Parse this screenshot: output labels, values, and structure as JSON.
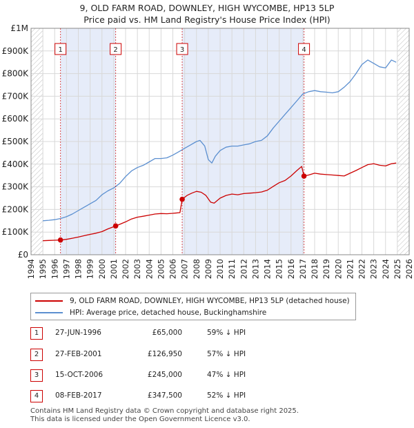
{
  "header": {
    "title_line1": "9, OLD FARM ROAD, DOWNLEY, HIGH WYCOMBE, HP13 5LP",
    "title_line2": "Price paid vs. HM Land Registry's House Price Index (HPI)"
  },
  "colors": {
    "property_line": "#cc0000",
    "hpi_line": "#5b8fd0",
    "span_fill": "#e6ecf9",
    "hatch": "#bbbbbb",
    "grid": "#d8d8d8"
  },
  "chart_data": {
    "type": "line",
    "x_range": [
      1994,
      2026
    ],
    "y_range": [
      0,
      1000000
    ],
    "xlabel": "",
    "ylabel": "",
    "x_ticks": [
      "1994",
      "1995",
      "1996",
      "1997",
      "1998",
      "1999",
      "2000",
      "2001",
      "2002",
      "2003",
      "2004",
      "2005",
      "2006",
      "2007",
      "2008",
      "2009",
      "2010",
      "2011",
      "2012",
      "2013",
      "2014",
      "2015",
      "2016",
      "2017",
      "2018",
      "2019",
      "2020",
      "2021",
      "2022",
      "2023",
      "2024",
      "2025",
      "2026"
    ],
    "y_ticks": [
      {
        "value": 0,
        "label": "£0"
      },
      {
        "value": 100000,
        "label": "£100K"
      },
      {
        "value": 200000,
        "label": "£200K"
      },
      {
        "value": 300000,
        "label": "£300K"
      },
      {
        "value": 400000,
        "label": "£400K"
      },
      {
        "value": 500000,
        "label": "£500K"
      },
      {
        "value": 600000,
        "label": "£600K"
      },
      {
        "value": 700000,
        "label": "£700K"
      },
      {
        "value": 800000,
        "label": "£800K"
      },
      {
        "value": 900000,
        "label": "£900K"
      },
      {
        "value": 1000000,
        "label": "£1M"
      }
    ],
    "shaded_spans": [
      [
        1996.49,
        2001.16
      ],
      [
        2006.79,
        2017.1
      ]
    ],
    "hatch_before": 1995.0,
    "hatch_after": 2025.0,
    "series": [
      {
        "name": "9, OLD FARM ROAD, DOWNLEY, HIGH WYCOMBE, HP13 5LP (detached house)",
        "key": "property",
        "points": [
          [
            1995.0,
            62000
          ],
          [
            1995.5,
            63000
          ],
          [
            1996.0,
            64000
          ],
          [
            1996.49,
            65000
          ],
          [
            1997.0,
            68000
          ],
          [
            1997.5,
            73000
          ],
          [
            1998.0,
            78000
          ],
          [
            1998.5,
            84000
          ],
          [
            1999.0,
            90000
          ],
          [
            1999.5,
            95000
          ],
          [
            2000.0,
            102000
          ],
          [
            2000.5,
            114000
          ],
          [
            2001.16,
            126950
          ],
          [
            2001.5,
            134000
          ],
          [
            2002.0,
            145000
          ],
          [
            2002.5,
            158000
          ],
          [
            2003.0,
            166000
          ],
          [
            2003.5,
            170000
          ],
          [
            2004.0,
            175000
          ],
          [
            2004.5,
            180000
          ],
          [
            2005.0,
            182000
          ],
          [
            2005.5,
            181000
          ],
          [
            2006.0,
            183000
          ],
          [
            2006.6,
            186000
          ],
          [
            2006.79,
            245000
          ],
          [
            2007.2,
            262000
          ],
          [
            2007.6,
            272000
          ],
          [
            2008.0,
            280000
          ],
          [
            2008.4,
            276000
          ],
          [
            2008.8,
            262000
          ],
          [
            2009.2,
            232000
          ],
          [
            2009.5,
            228000
          ],
          [
            2010.0,
            250000
          ],
          [
            2010.5,
            262000
          ],
          [
            2011.0,
            268000
          ],
          [
            2011.5,
            265000
          ],
          [
            2012.0,
            270000
          ],
          [
            2012.5,
            272000
          ],
          [
            2013.0,
            274000
          ],
          [
            2013.5,
            277000
          ],
          [
            2014.0,
            285000
          ],
          [
            2014.5,
            302000
          ],
          [
            2015.0,
            318000
          ],
          [
            2015.5,
            328000
          ],
          [
            2016.0,
            348000
          ],
          [
            2016.5,
            372000
          ],
          [
            2016.9,
            390000
          ],
          [
            2017.1,
            347500
          ],
          [
            2017.5,
            352000
          ],
          [
            2018.0,
            360000
          ],
          [
            2018.5,
            356000
          ],
          [
            2019.0,
            354000
          ],
          [
            2019.5,
            352000
          ],
          [
            2020.0,
            350000
          ],
          [
            2020.5,
            348000
          ],
          [
            2021.0,
            360000
          ],
          [
            2021.5,
            372000
          ],
          [
            2022.0,
            385000
          ],
          [
            2022.5,
            398000
          ],
          [
            2023.0,
            402000
          ],
          [
            2023.5,
            395000
          ],
          [
            2024.0,
            392000
          ],
          [
            2024.5,
            402000
          ],
          [
            2024.9,
            405000
          ]
        ]
      },
      {
        "name": "HPI: Average price, detached house, Buckinghamshire",
        "key": "hpi",
        "points": [
          [
            1995.0,
            150000
          ],
          [
            1995.5,
            152000
          ],
          [
            1996.0,
            155000
          ],
          [
            1996.5,
            160000
          ],
          [
            1997.0,
            168000
          ],
          [
            1997.5,
            180000
          ],
          [
            1998.0,
            195000
          ],
          [
            1998.5,
            210000
          ],
          [
            1999.0,
            225000
          ],
          [
            1999.5,
            240000
          ],
          [
            2000.0,
            265000
          ],
          [
            2000.5,
            282000
          ],
          [
            2001.0,
            295000
          ],
          [
            2001.5,
            315000
          ],
          [
            2002.0,
            345000
          ],
          [
            2002.5,
            370000
          ],
          [
            2003.0,
            385000
          ],
          [
            2003.5,
            395000
          ],
          [
            2004.0,
            410000
          ],
          [
            2004.5,
            425000
          ],
          [
            2005.0,
            425000
          ],
          [
            2005.5,
            428000
          ],
          [
            2006.0,
            440000
          ],
          [
            2006.5,
            455000
          ],
          [
            2007.0,
            470000
          ],
          [
            2007.5,
            485000
          ],
          [
            2008.0,
            500000
          ],
          [
            2008.3,
            505000
          ],
          [
            2008.7,
            480000
          ],
          [
            2009.0,
            420000
          ],
          [
            2009.3,
            405000
          ],
          [
            2009.6,
            435000
          ],
          [
            2010.0,
            460000
          ],
          [
            2010.5,
            475000
          ],
          [
            2011.0,
            480000
          ],
          [
            2011.5,
            480000
          ],
          [
            2012.0,
            485000
          ],
          [
            2012.5,
            490000
          ],
          [
            2013.0,
            500000
          ],
          [
            2013.5,
            505000
          ],
          [
            2014.0,
            525000
          ],
          [
            2014.5,
            560000
          ],
          [
            2015.0,
            590000
          ],
          [
            2015.5,
            620000
          ],
          [
            2016.0,
            650000
          ],
          [
            2016.5,
            680000
          ],
          [
            2017.0,
            710000
          ],
          [
            2017.5,
            720000
          ],
          [
            2018.0,
            725000
          ],
          [
            2018.5,
            720000
          ],
          [
            2019.0,
            718000
          ],
          [
            2019.5,
            715000
          ],
          [
            2020.0,
            720000
          ],
          [
            2020.5,
            740000
          ],
          [
            2021.0,
            765000
          ],
          [
            2021.5,
            800000
          ],
          [
            2022.0,
            840000
          ],
          [
            2022.5,
            860000
          ],
          [
            2023.0,
            845000
          ],
          [
            2023.5,
            830000
          ],
          [
            2024.0,
            825000
          ],
          [
            2024.5,
            860000
          ],
          [
            2024.9,
            850000
          ]
        ]
      }
    ],
    "sales": [
      {
        "label": "1",
        "x": 1996.49,
        "y": 65000
      },
      {
        "label": "2",
        "x": 2001.16,
        "y": 126950
      },
      {
        "label": "3",
        "x": 2006.79,
        "y": 245000
      },
      {
        "label": "4",
        "x": 2017.1,
        "y": 347500
      }
    ]
  },
  "transactions": [
    {
      "num": "1",
      "date": "27-JUN-1996",
      "price": "£65,000",
      "hpi": "59% ↓ HPI"
    },
    {
      "num": "2",
      "date": "27-FEB-2001",
      "price": "£126,950",
      "hpi": "57% ↓ HPI"
    },
    {
      "num": "3",
      "date": "15-OCT-2006",
      "price": "£245,000",
      "hpi": "47% ↓ HPI"
    },
    {
      "num": "4",
      "date": "08-FEB-2017",
      "price": "£347,500",
      "hpi": "52% ↓ HPI"
    }
  ],
  "footer": {
    "line1": "Contains HM Land Registry data © Crown copyright and database right 2025.",
    "line2": "This data is licensed under the Open Government Licence v3.0."
  }
}
